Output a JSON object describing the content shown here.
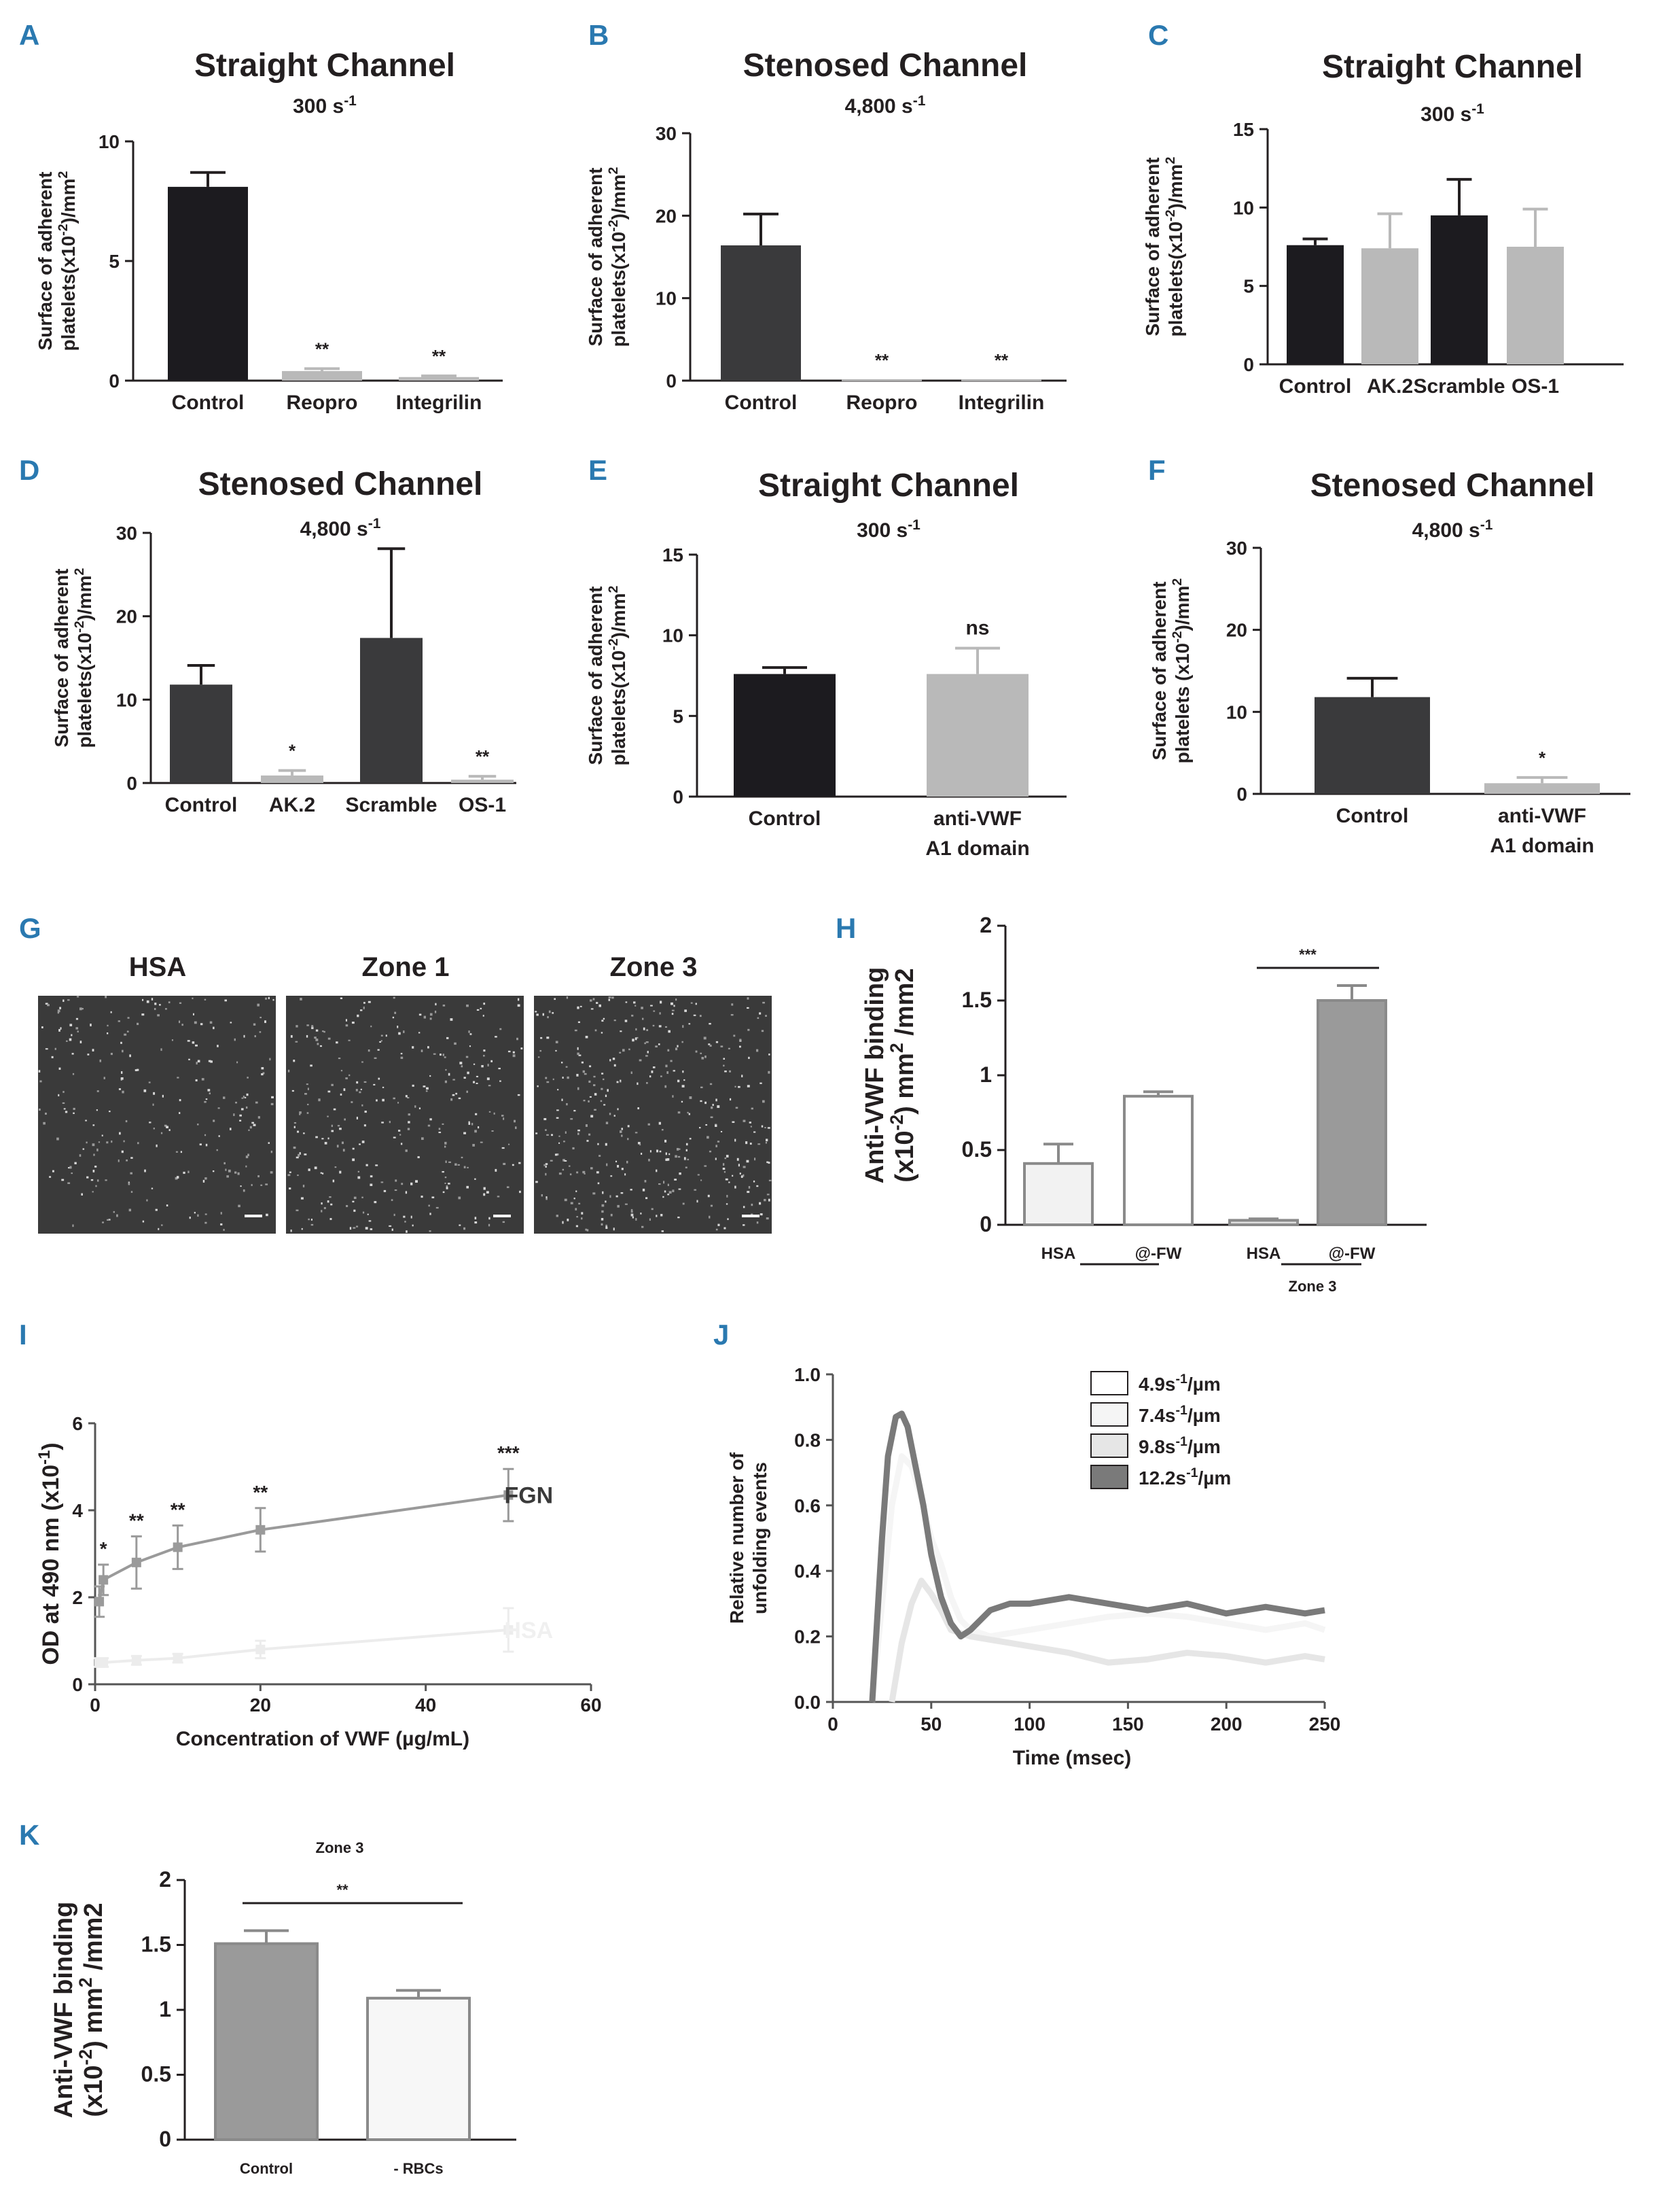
{
  "panel_letters": [
    "A",
    "B",
    "C",
    "D",
    "E",
    "F",
    "G",
    "H",
    "I",
    "J",
    "K"
  ],
  "chart_data": [
    {
      "panel": "A",
      "type": "bar",
      "title": "Straight Channel",
      "subtitle": "300 s-1",
      "ylabel_line1": "Surface of adherent",
      "ylabel_line2": "platelets(x10-2)/mm2",
      "categories": [
        "Control",
        "Reopro",
        "Integrilin"
      ],
      "values": [
        8.1,
        0.4,
        0.15
      ],
      "errors": [
        0.6,
        0.1,
        0.05
      ],
      "significance": [
        "",
        "**",
        "**"
      ],
      "colors": [
        "#1c1b1f",
        "#b9b9b9",
        "#b9b9b9"
      ],
      "ylim": [
        0,
        10
      ],
      "yticks": [
        0,
        5,
        10
      ]
    },
    {
      "panel": "B",
      "type": "bar",
      "title": "Stenosed Channel",
      "subtitle": "4,800 s-1",
      "ylabel_line1": "Surface of adherent",
      "ylabel_line2": "platelets(x10-2)/mm2",
      "categories": [
        "Control",
        "Reopro",
        "Integrilin"
      ],
      "values": [
        16.4,
        0.1,
        0.1
      ],
      "errors": [
        3.8,
        0,
        0
      ],
      "significance": [
        "",
        "**",
        "**"
      ],
      "colors": [
        "#3a3a3c",
        "#b9b9b9",
        "#b9b9b9"
      ],
      "ylim": [
        0,
        30
      ],
      "yticks": [
        0,
        10,
        20,
        30
      ]
    },
    {
      "panel": "C",
      "type": "bar",
      "title": "Straight Channel",
      "subtitle": "300 s-1",
      "ylabel_line1": "Surface of adherent",
      "ylabel_line2": "platelets(x10-2)/mm2",
      "categories": [
        "Control",
        "AK.2",
        "Scramble",
        "OS-1"
      ],
      "values": [
        7.6,
        7.4,
        9.5,
        7.5
      ],
      "errors": [
        0.4,
        2.2,
        2.3,
        2.4
      ],
      "significance": [
        "",
        "",
        "",
        ""
      ],
      "colors": [
        "#1c1b1f",
        "#b9b9b9",
        "#1c1b1f",
        "#b9b9b9"
      ],
      "ylim": [
        0,
        15
      ],
      "yticks": [
        0,
        5,
        10,
        15
      ]
    },
    {
      "panel": "D",
      "type": "bar",
      "title": "Stenosed Channel",
      "subtitle": "4,800 s-1",
      "ylabel_line1": "Surface of adherent",
      "ylabel_line2": "platelets(x10-2)/mm2",
      "categories": [
        "Control",
        "AK.2",
        "Scramble",
        "OS-1"
      ],
      "values": [
        11.8,
        0.9,
        17.4,
        0.4
      ],
      "errors": [
        2.3,
        0.6,
        10.7,
        0.4
      ],
      "significance": [
        "",
        "*",
        "",
        "**"
      ],
      "colors": [
        "#3a3a3c",
        "#b9b9b9",
        "#3a3a3c",
        "#b9b9b9"
      ],
      "ylim": [
        0,
        30
      ],
      "yticks": [
        0,
        10,
        20,
        30
      ]
    },
    {
      "panel": "E",
      "type": "bar",
      "title": "Straight Channel",
      "subtitle": "300 s-1",
      "ylabel_line1": "Surface of adherent",
      "ylabel_line2": "platelets(x10-2)/mm2",
      "categories": [
        "Control",
        "anti-VWF"
      ],
      "categories_line2": [
        "",
        "A1 domain"
      ],
      "values": [
        7.6,
        7.6
      ],
      "errors": [
        0.4,
        1.6
      ],
      "significance": [
        "",
        "ns"
      ],
      "colors": [
        "#1c1b1f",
        "#b9b9b9"
      ],
      "ylim": [
        0,
        15
      ],
      "yticks": [
        0,
        5,
        10,
        15
      ]
    },
    {
      "panel": "F",
      "type": "bar",
      "title": "Stenosed Channel",
      "subtitle": "4,800 s-1",
      "ylabel_line1": "Surface of adherent",
      "ylabel_line2": "platelets (x10-2)/mm2",
      "categories": [
        "Control",
        "anti-VWF"
      ],
      "categories_line2": [
        "",
        "A1 domain"
      ],
      "values": [
        11.8,
        1.3
      ],
      "errors": [
        2.3,
        0.7
      ],
      "significance": [
        "",
        "*"
      ],
      "colors": [
        "#3a3a3c",
        "#b9b9b9"
      ],
      "ylim": [
        0,
        30
      ],
      "yticks": [
        0,
        10,
        20,
        30
      ]
    },
    {
      "panel": "H",
      "type": "bar",
      "ylabel_line1": "Anti-VWF binding",
      "ylabel_line2": "(x10-2) mm2 /mm2",
      "categories": [
        "HSA",
        "@-FW",
        "HSA",
        "@-FW"
      ],
      "group_labels": [
        "",
        "Zone 3"
      ],
      "values": [
        0.41,
        0.86,
        0.03,
        1.5
      ],
      "errors": [
        0.13,
        0.03,
        0.01,
        0.1
      ],
      "colors": [
        "#f2f2f2",
        "#ffffff",
        "#dcdcdc",
        "#9a9a9a"
      ],
      "bracket": {
        "from": 2,
        "to": 3,
        "label": "***"
      },
      "ylim": [
        0,
        2
      ],
      "yticks": [
        0,
        0.5,
        1,
        1.5,
        2
      ],
      "ytick_labels": [
        "0",
        "0.5",
        "1",
        "1.5",
        "2"
      ]
    },
    {
      "panel": "I",
      "type": "line",
      "ylabel": "OD at 490 nm (x10-1)",
      "xlabel": "Concentration of VWF (µg/mL)",
      "xlim": [
        0,
        60
      ],
      "xticks": [
        0,
        20,
        40,
        60
      ],
      "ylim": [
        0,
        6
      ],
      "yticks": [
        0,
        2,
        4,
        6
      ],
      "series": [
        {
          "name": "FGN",
          "color": "#9a9a9a",
          "x": [
            0.5,
            1,
            5,
            10,
            20,
            50
          ],
          "y": [
            1.9,
            2.4,
            2.8,
            3.15,
            3.55,
            4.35
          ],
          "err": [
            0.35,
            0.35,
            0.6,
            0.5,
            0.5,
            0.6
          ],
          "significance": [
            "",
            "*",
            "**",
            "**",
            "**",
            "***"
          ]
        },
        {
          "name": "HSA",
          "color": "#ececec",
          "x": [
            0.5,
            1,
            5,
            10,
            20,
            50
          ],
          "y": [
            0.5,
            0.5,
            0.55,
            0.6,
            0.8,
            1.25
          ],
          "err": [
            0.1,
            0.1,
            0.1,
            0.1,
            0.2,
            0.5
          ],
          "significance": [
            "",
            "",
            "",
            "",
            "",
            ""
          ]
        }
      ]
    },
    {
      "panel": "J",
      "type": "line",
      "ylabel_line1": "Relative number of",
      "ylabel_line2": "unfolding events",
      "xlabel": "Time (msec)",
      "xlim": [
        0,
        250
      ],
      "xticks": [
        0,
        50,
        100,
        150,
        200,
        250
      ],
      "ylim": [
        0,
        1.0
      ],
      "yticks": [
        0.0,
        0.2,
        0.4,
        0.6,
        0.8,
        1.0
      ],
      "ytick_labels": [
        "0.0",
        "0.2",
        "0.4",
        "0.6",
        "0.8",
        "1.0"
      ],
      "legend_position": "top-right",
      "series": [
        {
          "name": "4.9s-1/µm",
          "color": "#ffffff",
          "x": [
            0,
            250
          ],
          "y": [
            0,
            0
          ]
        },
        {
          "name": "7.4s-1/µm",
          "color": "#f5f5f5",
          "x": [
            20,
            25,
            30,
            35,
            40,
            45,
            50,
            55,
            60,
            65,
            70,
            80,
            90,
            100,
            120,
            140,
            160,
            180,
            200,
            220,
            240,
            250
          ],
          "y": [
            0,
            0.3,
            0.6,
            0.75,
            0.72,
            0.62,
            0.5,
            0.42,
            0.32,
            0.25,
            0.22,
            0.2,
            0.21,
            0.22,
            0.24,
            0.26,
            0.27,
            0.26,
            0.24,
            0.22,
            0.24,
            0.22
          ]
        },
        {
          "name": "9.8s-1/µm",
          "color": "#e6e6e6",
          "x": [
            30,
            35,
            40,
            45,
            50,
            55,
            60,
            70,
            80,
            90,
            100,
            120,
            140,
            160,
            180,
            200,
            220,
            240,
            250
          ],
          "y": [
            0,
            0.18,
            0.3,
            0.37,
            0.33,
            0.28,
            0.22,
            0.2,
            0.19,
            0.18,
            0.17,
            0.15,
            0.12,
            0.13,
            0.15,
            0.14,
            0.12,
            0.14,
            0.13
          ]
        },
        {
          "name": "12.2s-1/µm",
          "color": "#7a7a7a",
          "x": [
            20,
            22,
            25,
            28,
            32,
            35,
            38,
            42,
            46,
            50,
            55,
            60,
            65,
            70,
            80,
            90,
            100,
            120,
            140,
            160,
            180,
            200,
            220,
            240,
            250
          ],
          "y": [
            0,
            0.2,
            0.5,
            0.75,
            0.87,
            0.88,
            0.84,
            0.72,
            0.6,
            0.45,
            0.32,
            0.24,
            0.2,
            0.22,
            0.28,
            0.3,
            0.3,
            0.32,
            0.3,
            0.28,
            0.3,
            0.27,
            0.29,
            0.27,
            0.28
          ]
        }
      ]
    },
    {
      "panel": "K",
      "type": "bar",
      "top_label": "Zone 3",
      "ylabel_line1": "Anti-VWF binding",
      "ylabel_line2": "(x10-2) mm2 /mm2",
      "categories": [
        "Control",
        "- RBCs"
      ],
      "values": [
        1.51,
        1.09
      ],
      "errors": [
        0.1,
        0.06
      ],
      "colors": [
        "#9a9a9a",
        "#f7f7f7"
      ],
      "bracket": {
        "from": 0,
        "to": 1,
        "label": "**"
      },
      "ylim": [
        0,
        2
      ],
      "yticks": [
        0,
        0.5,
        1,
        1.5,
        2
      ],
      "ytick_labels": [
        "0",
        "0.5",
        "1",
        "1.5",
        "2"
      ]
    }
  ],
  "panel_g": {
    "labels": [
      "HSA",
      "Zone 1",
      "Zone 3"
    ]
  }
}
